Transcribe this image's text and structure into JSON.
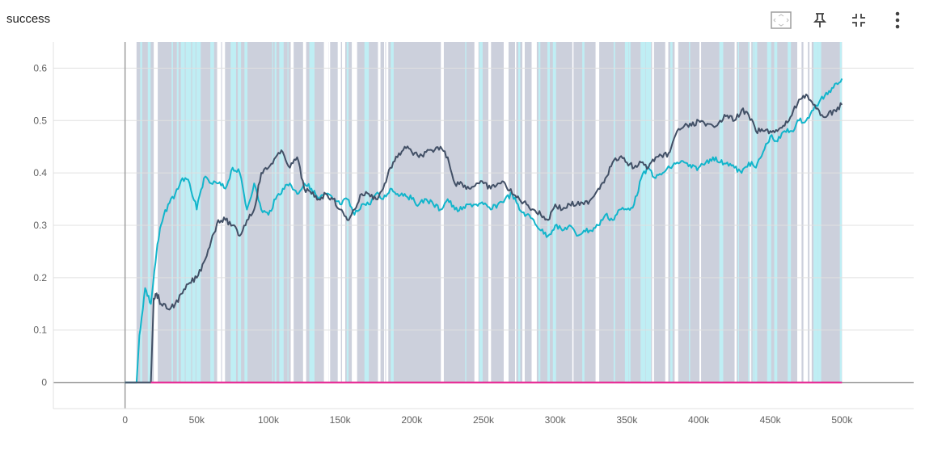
{
  "panel": {
    "title": "success",
    "icons": [
      "fit-to-data-icon",
      "pin-icon",
      "fullscreen-exit-icon",
      "more-vert-icon"
    ]
  },
  "colors": {
    "series_dark": "#425066",
    "series_cyan": "#12b5cb",
    "series_magenta": "#e52592",
    "band_gray": "#ccd0dc",
    "band_cyan": "#bfeef4",
    "grid": "#e0e0e0",
    "axis": "#9e9e9e"
  },
  "chart_data": {
    "type": "line",
    "title": "",
    "xlabel": "",
    "ylabel": "",
    "xlim": [
      -50000,
      550000
    ],
    "ylim": [
      -0.05,
      0.65
    ],
    "x_ticks": [
      0,
      50000,
      100000,
      150000,
      200000,
      250000,
      300000,
      350000,
      400000,
      450000,
      500000
    ],
    "x_tick_labels": [
      "0",
      "50k",
      "100k",
      "150k",
      "200k",
      "250k",
      "300k",
      "350k",
      "400k",
      "450k",
      "500k"
    ],
    "y_ticks": [
      0,
      0.1,
      0.2,
      0.3,
      0.4,
      0.5,
      0.6
    ],
    "y_tick_labels": [
      "0",
      "0.1",
      "0.2",
      "0.3",
      "0.4",
      "0.5",
      "0.6"
    ],
    "grid": true,
    "legend": "none",
    "series": [
      {
        "color": "#12b5cb",
        "x": [
          0,
          8000,
          10000,
          14000,
          18000,
          22000,
          25000,
          30000,
          35000,
          40000,
          45000,
          50000,
          55000,
          60000,
          65000,
          70000,
          75000,
          80000,
          85000,
          90000,
          95000,
          100000,
          105000,
          110000,
          115000,
          120000,
          125000,
          130000,
          135000,
          140000,
          145000,
          150000,
          155000,
          160000,
          165000,
          170000,
          175000,
          180000,
          185000,
          190000,
          195000,
          200000,
          205000,
          210000,
          215000,
          220000,
          225000,
          230000,
          235000,
          240000,
          245000,
          250000,
          255000,
          260000,
          265000,
          270000,
          275000,
          280000,
          285000,
          290000,
          295000,
          300000,
          305000,
          310000,
          315000,
          320000,
          325000,
          330000,
          335000,
          340000,
          345000,
          350000,
          355000,
          360000,
          365000,
          370000,
          375000,
          380000,
          385000,
          390000,
          395000,
          400000,
          405000,
          410000,
          415000,
          420000,
          425000,
          430000,
          435000,
          440000,
          445000,
          450000,
          455000,
          460000,
          465000,
          470000,
          475000,
          480000,
          485000,
          490000,
          495000,
          500000
        ],
        "y": [
          0,
          0,
          0.09,
          0.18,
          0.15,
          0.25,
          0.3,
          0.34,
          0.36,
          0.39,
          0.38,
          0.33,
          0.39,
          0.38,
          0.38,
          0.37,
          0.41,
          0.4,
          0.33,
          0.38,
          0.33,
          0.32,
          0.35,
          0.37,
          0.38,
          0.36,
          0.38,
          0.37,
          0.35,
          0.36,
          0.35,
          0.34,
          0.35,
          0.32,
          0.34,
          0.34,
          0.36,
          0.35,
          0.37,
          0.36,
          0.36,
          0.35,
          0.34,
          0.35,
          0.34,
          0.33,
          0.35,
          0.33,
          0.33,
          0.34,
          0.34,
          0.34,
          0.33,
          0.34,
          0.35,
          0.36,
          0.33,
          0.32,
          0.31,
          0.29,
          0.28,
          0.3,
          0.29,
          0.3,
          0.28,
          0.29,
          0.29,
          0.3,
          0.32,
          0.31,
          0.33,
          0.33,
          0.34,
          0.39,
          0.41,
          0.39,
          0.4,
          0.41,
          0.42,
          0.42,
          0.41,
          0.41,
          0.42,
          0.43,
          0.42,
          0.42,
          0.41,
          0.4,
          0.42,
          0.41,
          0.44,
          0.47,
          0.46,
          0.48,
          0.48,
          0.5,
          0.5,
          0.52,
          0.54,
          0.55,
          0.57,
          0.58
        ]
      },
      {
        "color": "#425066",
        "x": [
          0,
          18000,
          20000,
          22000,
          25000,
          30000,
          35000,
          40000,
          45000,
          50000,
          55000,
          60000,
          65000,
          70000,
          75000,
          80000,
          85000,
          90000,
          95000,
          100000,
          105000,
          110000,
          115000,
          120000,
          125000,
          130000,
          135000,
          140000,
          145000,
          150000,
          155000,
          160000,
          165000,
          170000,
          175000,
          180000,
          185000,
          190000,
          195000,
          200000,
          205000,
          210000,
          215000,
          220000,
          225000,
          230000,
          235000,
          240000,
          245000,
          250000,
          255000,
          260000,
          265000,
          270000,
          275000,
          280000,
          285000,
          290000,
          295000,
          300000,
          305000,
          310000,
          315000,
          320000,
          325000,
          330000,
          335000,
          340000,
          345000,
          350000,
          355000,
          360000,
          365000,
          370000,
          375000,
          380000,
          385000,
          390000,
          395000,
          400000,
          405000,
          410000,
          415000,
          420000,
          425000,
          430000,
          435000,
          440000,
          445000,
          450000,
          455000,
          460000,
          465000,
          470000,
          475000,
          480000,
          485000,
          490000,
          495000,
          500000
        ],
        "y": [
          0,
          0,
          0.16,
          0.17,
          0.15,
          0.14,
          0.15,
          0.17,
          0.19,
          0.2,
          0.23,
          0.27,
          0.31,
          0.31,
          0.3,
          0.28,
          0.31,
          0.33,
          0.4,
          0.41,
          0.43,
          0.44,
          0.41,
          0.43,
          0.37,
          0.36,
          0.35,
          0.36,
          0.35,
          0.33,
          0.31,
          0.33,
          0.36,
          0.36,
          0.35,
          0.37,
          0.41,
          0.43,
          0.45,
          0.44,
          0.43,
          0.44,
          0.44,
          0.45,
          0.43,
          0.38,
          0.38,
          0.37,
          0.38,
          0.38,
          0.37,
          0.38,
          0.38,
          0.36,
          0.35,
          0.34,
          0.33,
          0.32,
          0.31,
          0.34,
          0.33,
          0.34,
          0.34,
          0.34,
          0.35,
          0.37,
          0.39,
          0.42,
          0.43,
          0.42,
          0.41,
          0.42,
          0.41,
          0.43,
          0.43,
          0.44,
          0.48,
          0.49,
          0.49,
          0.5,
          0.49,
          0.49,
          0.5,
          0.51,
          0.5,
          0.52,
          0.51,
          0.48,
          0.48,
          0.48,
          0.48,
          0.49,
          0.51,
          0.54,
          0.55,
          0.53,
          0.51,
          0.51,
          0.52,
          0.53
        ]
      },
      {
        "color": "#e52592",
        "x": [
          18000,
          500000
        ],
        "y": [
          0,
          0
        ]
      }
    ]
  }
}
